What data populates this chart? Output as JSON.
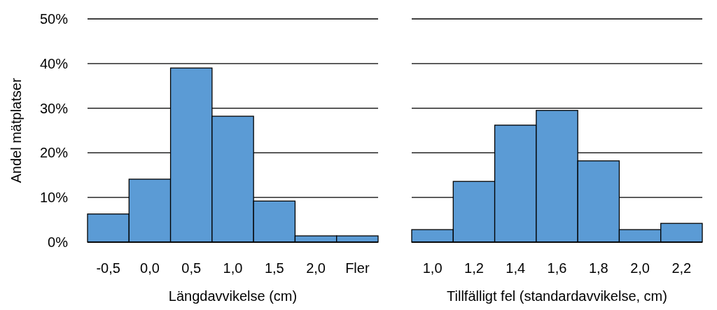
{
  "chart_data": [
    {
      "type": "bar",
      "xlabel": "Längdavvikelse (cm)",
      "ylabel": "Andel mätplatser",
      "categories": [
        "-0,5",
        "0,0",
        "0,5",
        "1,0",
        "1,5",
        "2,0",
        "Fler"
      ],
      "values": [
        6.3,
        14.1,
        39.0,
        28.2,
        9.2,
        1.4,
        1.4
      ],
      "color": "#5b9bd5",
      "ylim": [
        0,
        50
      ],
      "yticks": [
        {
          "value": 0,
          "label": "0%"
        },
        {
          "value": 10,
          "label": "10%"
        },
        {
          "value": 20,
          "label": "20%"
        },
        {
          "value": 30,
          "label": "30%"
        },
        {
          "value": 40,
          "label": "40%"
        },
        {
          "value": 50,
          "label": "50%"
        }
      ],
      "grid": "y"
    },
    {
      "type": "bar",
      "xlabel": "Tillfälligt fel (standardavvikelse, cm)",
      "categories": [
        "1,0",
        "1,2",
        "1,4",
        "1,6",
        "1,8",
        "2,0",
        "2,2"
      ],
      "values": [
        2.8,
        13.6,
        26.2,
        29.5,
        18.2,
        2.8,
        4.2
      ],
      "color": "#5b9bd5",
      "ylim": [
        0,
        50
      ],
      "yticks": [
        {
          "value": 0,
          "label": null
        },
        {
          "value": 10,
          "label": null
        },
        {
          "value": 20,
          "label": null
        },
        {
          "value": 30,
          "label": null
        },
        {
          "value": 40,
          "label": null
        },
        {
          "value": 50,
          "label": null
        }
      ],
      "grid": "y",
      "tick_labels": "x"
    }
  ]
}
